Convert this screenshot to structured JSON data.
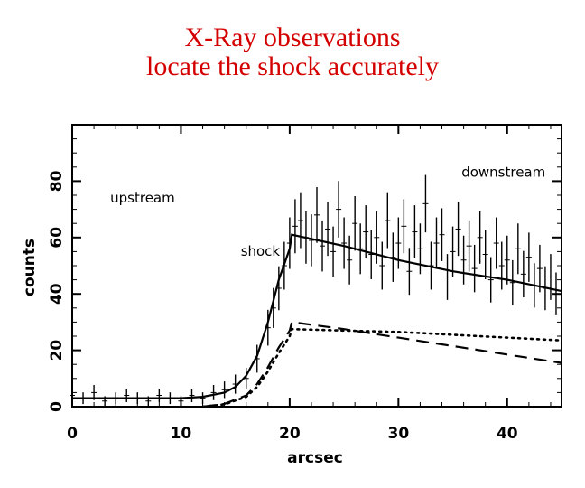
{
  "slide": {
    "title_line1": "X-Ray observations",
    "title_line2": "locate the shock accurately",
    "title_color": "#d40000"
  },
  "chart_data": {
    "type": "line",
    "xlabel": "arcsec",
    "ylabel": "counts",
    "xlim": [
      0,
      45
    ],
    "ylim": [
      0,
      100
    ],
    "x_ticks": [
      0,
      10,
      20,
      30,
      40
    ],
    "y_ticks": [
      0,
      20,
      40,
      60,
      80
    ],
    "annotations": [
      {
        "text": "upstream",
        "x": 3.5,
        "y": 72.5
      },
      {
        "text": "shock",
        "x": 15.5,
        "y": 53.5
      },
      {
        "text": "downstream",
        "x": 35.8,
        "y": 81.5
      }
    ],
    "series": [
      {
        "style": "solid",
        "x": [
          0,
          10,
          12,
          14,
          15,
          16,
          17,
          18,
          19,
          20,
          20.2,
          25,
          30,
          35,
          40,
          45
        ],
        "y": [
          3,
          3,
          3.5,
          5,
          7,
          11,
          18,
          30,
          45,
          56,
          61,
          57,
          52,
          48,
          45,
          41
        ]
      },
      {
        "style": "dashed",
        "x": [
          12,
          14,
          16,
          17,
          18,
          19,
          20,
          20.2,
          25,
          30,
          35,
          40,
          45
        ],
        "y": [
          0,
          1,
          4,
          8,
          14,
          21,
          27,
          30,
          27.5,
          24.5,
          21.5,
          18.5,
          15.5
        ]
      },
      {
        "style": "dotted",
        "x": [
          12,
          14,
          16,
          17,
          18,
          19,
          20,
          20.2,
          25,
          30,
          35,
          40,
          45
        ],
        "y": [
          0,
          0.8,
          3.5,
          7,
          12.5,
          19,
          25,
          27.5,
          27,
          26.5,
          25.5,
          24.5,
          23.5
        ]
      },
      {
        "style": "noisy-data",
        "x": [
          0,
          1,
          2,
          3,
          4,
          5,
          6,
          7,
          8,
          9,
          10,
          11,
          12,
          13,
          14,
          15,
          16,
          17,
          18,
          18.5,
          19,
          19.5,
          20,
          20.5,
          21,
          21.5,
          22,
          22.5,
          23,
          23.5,
          24,
          24.5,
          25,
          25.5,
          26,
          26.5,
          27,
          27.5,
          28,
          28.5,
          29,
          29.5,
          30,
          30.5,
          31,
          31.5,
          32,
          32.5,
          33,
          33.5,
          34,
          34.5,
          35,
          35.5,
          36,
          36.5,
          37,
          37.5,
          38,
          38.5,
          39,
          39.5,
          40,
          40.5,
          41,
          41.5,
          42,
          42.5,
          43,
          43.5,
          44,
          44.5
        ],
        "y": [
          4,
          3,
          5,
          2,
          3,
          4,
          3,
          2,
          4,
          3,
          2,
          4,
          3,
          5,
          6,
          8,
          10,
          17,
          28,
          35,
          42,
          50,
          58,
          64,
          66,
          60,
          59,
          68,
          57,
          63,
          55,
          70,
          58,
          52,
          65,
          56,
          62,
          54,
          60,
          50,
          66,
          53,
          58,
          64,
          48,
          62,
          56,
          72,
          50,
          58,
          61,
          46,
          55,
          63,
          52,
          57,
          49,
          60,
          54,
          45,
          58,
          50,
          52,
          44,
          56,
          47,
          53,
          43,
          49,
          42,
          46,
          40
        ]
      }
    ]
  }
}
